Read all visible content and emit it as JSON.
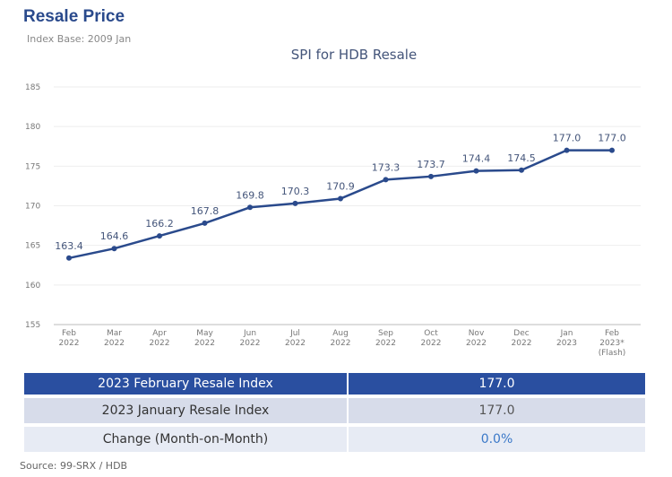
{
  "header": {
    "title": "Resale Price",
    "subtitle": "Index Base: 2009 Jan"
  },
  "chart_data": {
    "type": "line",
    "title": "SPI for HDB Resale",
    "categories": [
      [
        "Feb",
        "2022"
      ],
      [
        "Mar",
        "2022"
      ],
      [
        "Apr",
        "2022"
      ],
      [
        "May",
        "2022"
      ],
      [
        "Jun",
        "2022"
      ],
      [
        "Jul",
        "2022"
      ],
      [
        "Aug",
        "2022"
      ],
      [
        "Sep",
        "2022"
      ],
      [
        "Oct",
        "2022"
      ],
      [
        "Nov",
        "2022"
      ],
      [
        "Dec",
        "2022"
      ],
      [
        "Jan",
        "2023"
      ],
      [
        "Feb",
        "2023*",
        "(Flash)"
      ]
    ],
    "values": [
      163.4,
      164.6,
      166.2,
      167.8,
      169.8,
      170.3,
      170.9,
      173.3,
      173.7,
      174.4,
      174.5,
      177.0,
      177.0
    ],
    "data_labels": [
      "163.4",
      "164.6",
      "166.2",
      "167.8",
      "169.8",
      "170.3",
      "170.9",
      "173.3",
      "173.7",
      "174.4",
      "174.5",
      "177.0",
      "177.0"
    ],
    "ylim": [
      155,
      185
    ],
    "yticks": [
      155,
      160,
      165,
      170,
      175,
      180,
      185
    ],
    "grid": true,
    "color": "#2a4a8c"
  },
  "table": {
    "rows": [
      {
        "label": "2023 February Resale Index",
        "value": "177.0"
      },
      {
        "label": "2023 January Resale Index",
        "value": "177.0"
      },
      {
        "label": "Change (Month-on-Month)",
        "value": "0.0%"
      }
    ]
  },
  "source": "Source: 99-SRX / HDB"
}
